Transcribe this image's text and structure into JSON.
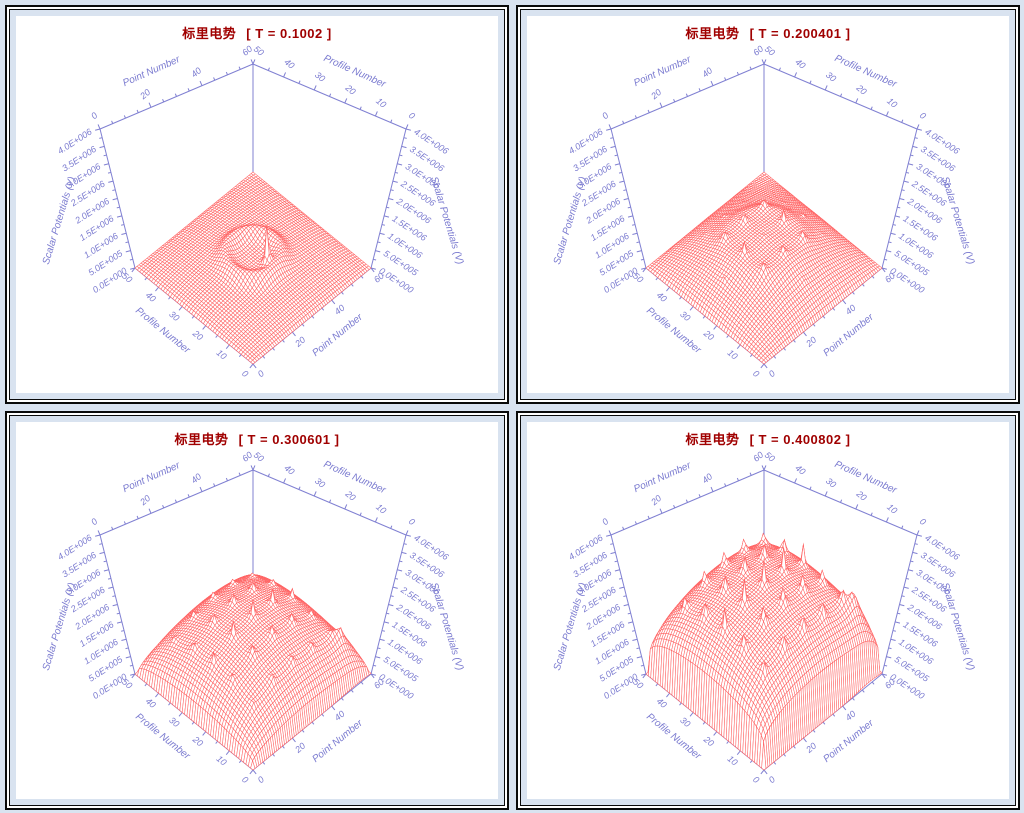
{
  "page": {
    "background": "#d9e3f0",
    "panel_background": "#ffffff",
    "frame_color": "#0a0a0a"
  },
  "colors": {
    "axis": "#8080d2",
    "axis_text": "#7b7bd0",
    "mesh_line": "#ff6464",
    "mesh_fill": "#ffffff",
    "title": "#a00000"
  },
  "chart_data": [
    {
      "type": "surface",
      "title": "标里电势",
      "time_label": "[ T = 0.1002 ]",
      "time": 0.1002,
      "xaxis": {
        "label": "Point Number",
        "min": 0,
        "max": 60,
        "major_ticks": [
          0,
          20,
          40,
          60
        ],
        "minor_step": 5
      },
      "yaxis": {
        "label": "Profile Number",
        "min": 0,
        "max": 50,
        "major_ticks": [
          0,
          10,
          20,
          30,
          40,
          50
        ],
        "minor_step": 5
      },
      "zaxis": {
        "label": "Scalar Potentials (V)",
        "min": 0,
        "max": 4000000,
        "major_step": 500000,
        "minor_step": 250000,
        "tick_labels": [
          "0.0E+000",
          "5.0E+005",
          "1.0E+006",
          "1.5E+006",
          "2.0E+006",
          "2.5E+006",
          "3.0E+006",
          "3.5E+006",
          "4.0E+006"
        ]
      },
      "grid": "red wireframe mesh, ~60 x 50 cells, hidden-surface",
      "surface_description": "Nearly flat low sheet (~0.3E+6 V) with one sharp spike (~2.0E+6 V) just front-right of center and faint circular ripple ridges around it",
      "surface_params": {
        "dome_amp": 350000,
        "dome_pow": 0.6,
        "ring_amp": 330000,
        "ring_r": 0.17,
        "ring_w": 0.055,
        "lattice_amp": 0,
        "lattice_env": 1,
        "lattice_w": 0.016,
        "spikes": [
          {
            "u": 0.52,
            "v": 0.4,
            "amp": 1700000,
            "w": 0.012
          }
        ],
        "peak_z_est": 2000000
      }
    },
    {
      "type": "surface",
      "title": "标里电势",
      "time_label": "[ T = 0.200401 ]",
      "time": 0.200401,
      "xaxis": {
        "label": "Point Number",
        "min": 0,
        "max": 60,
        "major_ticks": [
          0,
          20,
          40,
          60
        ],
        "minor_step": 5
      },
      "yaxis": {
        "label": "Profile Number",
        "min": 0,
        "max": 50,
        "major_ticks": [
          0,
          10,
          20,
          30,
          40,
          50
        ],
        "minor_step": 5
      },
      "zaxis": {
        "label": "Scalar Potentials (V)",
        "min": 0,
        "max": 4000000,
        "major_step": 500000,
        "minor_step": 250000,
        "tick_labels": [
          "0.0E+000",
          "5.0E+005",
          "1.0E+006",
          "1.5E+006",
          "2.0E+006",
          "2.5E+006",
          "3.0E+006",
          "3.5E+006",
          "4.0E+006"
        ]
      },
      "grid": "red wireframe mesh, ~60 x 50 cells, hidden-surface",
      "surface_description": "Broad low mound (~1.2E+6 V) around the center with an arc of about six small sharp peaks (~1.5E+6 V); edges at 0",
      "surface_params": {
        "dome_amp": 1050000,
        "dome_pow": 0.75,
        "ring_amp": 140000,
        "ring_r": 0.24,
        "ring_w": 0.07,
        "lattice_amp": 500000,
        "lattice_env": 0.8,
        "lattice_w": 0.016,
        "lattice_ring_r": 0.2,
        "lattice_ring_w": 0.13,
        "spikes": [],
        "peak_z_est": 1600000
      }
    },
    {
      "type": "surface",
      "title": "标里电势",
      "time_label": "[ T = 0.300601 ]",
      "time": 0.300601,
      "xaxis": {
        "label": "Point Number",
        "min": 0,
        "max": 60,
        "major_ticks": [
          0,
          20,
          40,
          60
        ],
        "minor_step": 5
      },
      "yaxis": {
        "label": "Profile Number",
        "min": 0,
        "max": 50,
        "major_ticks": [
          0,
          10,
          20,
          30,
          40,
          50
        ],
        "minor_step": 5
      },
      "zaxis": {
        "label": "Scalar Potentials (V)",
        "min": 0,
        "max": 4000000,
        "major_step": 500000,
        "minor_step": 250000,
        "tick_labels": [
          "0.0E+000",
          "5.0E+005",
          "1.0E+006",
          "1.5E+006",
          "2.0E+006",
          "2.5E+006",
          "3.0E+006",
          "3.5E+006",
          "4.0E+006"
        ]
      },
      "grid": "red wireframe mesh, ~60 x 50 cells, hidden-surface",
      "surface_description": "Higher scalloped dome (~2.2E+6 V) covering the middle with a lattice of sharp peaks (~2.4E+6 V) and a lobe spilling toward the right corner",
      "surface_params": {
        "dome_amp": 1900000,
        "dome_pow": 0.4,
        "ring_amp": 0,
        "ring_r": 0,
        "ring_w": 1,
        "lattice_amp": 550000,
        "lattice_env": 0.7,
        "lattice_w": 0.015,
        "spikes": [
          {
            "u": 0.88,
            "v": 0.14,
            "amp": 600000,
            "w": 0.055
          }
        ],
        "peak_z_est": 2450000
      }
    },
    {
      "type": "surface",
      "title": "标里电势",
      "time_label": "[ T = 0.400802 ]",
      "time": 0.400802,
      "xaxis": {
        "label": "Point Number",
        "min": 0,
        "max": 60,
        "major_ticks": [
          0,
          20,
          40,
          60
        ],
        "minor_step": 5
      },
      "yaxis": {
        "label": "Profile Number",
        "min": 0,
        "max": 50,
        "major_ticks": [
          0,
          10,
          20,
          30,
          40,
          50
        ],
        "minor_step": 5
      },
      "zaxis": {
        "label": "Scalar Potentials (V)",
        "min": 0,
        "max": 4000000,
        "major_step": 500000,
        "minor_step": 250000,
        "tick_labels": [
          "0.0E+000",
          "5.0E+005",
          "1.0E+006",
          "1.5E+006",
          "2.0E+006",
          "2.5E+006",
          "3.0E+006",
          "3.5E+006",
          "4.0E+006"
        ]
      },
      "grid": "red wireframe mesh, ~60 x 50 cells, hidden-surface",
      "surface_description": "Tall plateau dome (~3.0-3.6E+6 V) over most of the domain, rimmed by sharp spikes along the back edges, scalloped valleys between peaks, lobe draping over the right corner",
      "surface_params": {
        "dome_amp": 2950000,
        "dome_pow": 0.22,
        "ring_amp": 0,
        "ring_r": 0,
        "ring_w": 1,
        "lattice_amp": 850000,
        "lattice_env": 0.25,
        "lattice_w": 0.014,
        "spikes": [
          {
            "u": 0.89,
            "v": 0.13,
            "amp": 850000,
            "w": 0.055
          }
        ],
        "peak_z_est": 3650000
      }
    }
  ]
}
